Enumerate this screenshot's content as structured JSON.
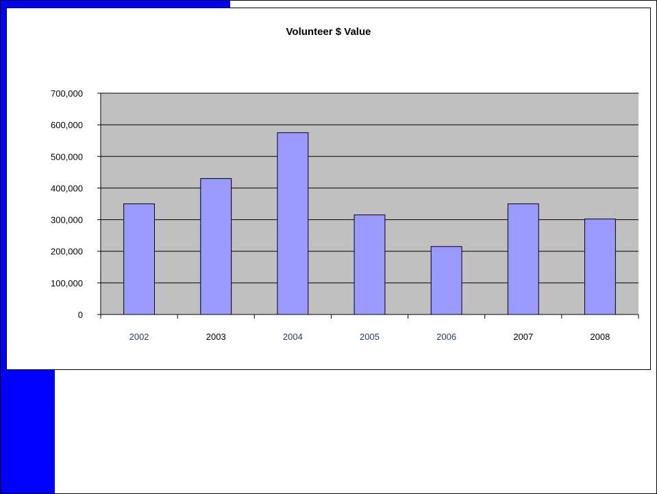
{
  "chart_data": {
    "type": "bar",
    "title": "Volunteer $ Value",
    "xlabel": "",
    "ylabel": "",
    "categories": [
      "2002",
      "2003",
      "2004",
      "2005",
      "2006",
      "2007",
      "2008"
    ],
    "values": [
      350000,
      430000,
      575000,
      315000,
      215000,
      350000,
      302000
    ],
    "ylim": [
      0,
      700000
    ],
    "yticks": [
      0,
      100000,
      200000,
      300000,
      400000,
      500000,
      600000,
      700000
    ],
    "ytick_labels": [
      "0",
      "100,000",
      "200,000",
      "300,000",
      "400,000",
      "500,000",
      "600,000",
      "700,000"
    ],
    "grid": true,
    "legend": "none",
    "colors": {
      "bar_fill": "#9999ff",
      "plot_background": "#c0c0c0",
      "category_label_alt": "#1f3f6f",
      "category_label": "#000000",
      "category_label_colors": [
        "#1f3f6f",
        "#000000",
        "#1f3f6f",
        "#1f3f6f",
        "#1f3f6f",
        "#000000",
        "#000000"
      ]
    }
  }
}
